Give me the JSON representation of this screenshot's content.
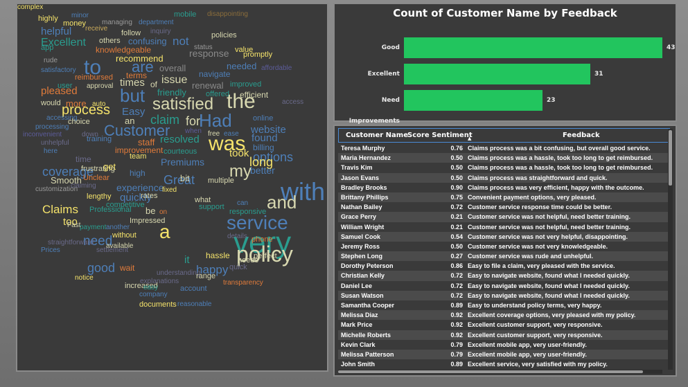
{
  "wordcloud": {
    "words": [
      {
        "text": "highly",
        "color": "#f5e36b",
        "size": 11
      },
      {
        "text": "minor",
        "color": "#4e7fb8",
        "size": 10
      },
      {
        "text": "mobile",
        "color": "#2a9d8f",
        "size": 11
      },
      {
        "text": "disappointing",
        "color": "#8a6d3b",
        "size": 10
      },
      {
        "text": "money",
        "color": "#f5e36b",
        "size": 11
      },
      {
        "text": "managing",
        "color": "#9a9a9a",
        "size": 10
      },
      {
        "text": "department",
        "color": "#4e7fb8",
        "size": 10
      },
      {
        "text": "helpful",
        "color": "#4e7fb8",
        "size": 15
      },
      {
        "text": "receive",
        "color": "#c9a95a",
        "size": 10
      },
      {
        "text": "follow",
        "color": "#d8d8b0",
        "size": 11
      },
      {
        "text": "inquiry",
        "color": "#6a6a8a",
        "size": 10
      },
      {
        "text": "policies",
        "color": "#d8d8b0",
        "size": 11
      },
      {
        "text": "Excellent",
        "color": "#2a9d8f",
        "size": 16
      },
      {
        "text": "others",
        "color": "#d8d8b0",
        "size": 11
      },
      {
        "text": "confusing",
        "color": "#4e7fb8",
        "size": 13
      },
      {
        "text": "not",
        "color": "#4e7fb8",
        "size": 17
      },
      {
        "text": "status",
        "color": "#9a9a9a",
        "size": 10
      },
      {
        "text": "value",
        "color": "#f5e36b",
        "size": 11
      },
      {
        "text": "app",
        "color": "#2a9d8f",
        "size": 11
      },
      {
        "text": "knowledgeable",
        "color": "#e07b3a",
        "size": 12
      },
      {
        "text": "response",
        "color": "#8a8a8a",
        "size": 14
      },
      {
        "text": "promptly",
        "color": "#f5e36b",
        "size": 11
      },
      {
        "text": "rude",
        "color": "#9a9a9a",
        "size": 10
      },
      {
        "text": "recommend",
        "color": "#f5e36b",
        "size": 13
      },
      {
        "text": "to",
        "color": "#4e7fb8",
        "size": 30
      },
      {
        "text": "are",
        "color": "#4e7fb8",
        "size": 22
      },
      {
        "text": "overall",
        "color": "#8a8a8a",
        "size": 13
      },
      {
        "text": "needed",
        "color": "#4e7fb8",
        "size": 13
      },
      {
        "text": "affordable",
        "color": "#5c5c9a",
        "size": 10
      },
      {
        "text": "satisfactory",
        "color": "#4e7fb8",
        "size": 10
      },
      {
        "text": "terms",
        "color": "#e07b3a",
        "size": 12
      },
      {
        "text": "navigate",
        "color": "#4e7fb8",
        "size": 12
      },
      {
        "text": "reimbursed",
        "color": "#e07b3a",
        "size": 11
      },
      {
        "text": "times",
        "color": "#d8d8b0",
        "size": 15
      },
      {
        "text": "of",
        "color": "#d8d8b0",
        "size": 12
      },
      {
        "text": "issue",
        "color": "#d8d8b0",
        "size": 16
      },
      {
        "text": "renewal",
        "color": "#8a8a8a",
        "size": 13
      },
      {
        "text": "improved",
        "color": "#2a9d8f",
        "size": 11
      },
      {
        "text": "approval",
        "color": "#d8d8b0",
        "size": 10
      },
      {
        "text": "user",
        "color": "#2a9d8f",
        "size": 11
      },
      {
        "text": "pleased",
        "color": "#e07b3a",
        "size": 15
      },
      {
        "text": "but",
        "color": "#4e7fb8",
        "size": 26
      },
      {
        "text": "friendly",
        "color": "#2a9d8f",
        "size": 13
      },
      {
        "text": "efficient",
        "color": "#d8d8b0",
        "size": 12
      },
      {
        "text": "offered",
        "color": "#2a9d8f",
        "size": 11
      },
      {
        "text": "access",
        "color": "#6a6a8a",
        "size": 10
      },
      {
        "text": "would",
        "color": "#d8d8b0",
        "size": 11
      },
      {
        "text": "more",
        "color": "#e07b3a",
        "size": 13
      },
      {
        "text": "auto",
        "color": "#f5e36b",
        "size": 10
      },
      {
        "text": "satisfied",
        "color": "#d8d8b0",
        "size": 24
      },
      {
        "text": "the",
        "color": "#d8d8b0",
        "size": 30
      },
      {
        "text": "process",
        "color": "#f5e36b",
        "size": 20
      },
      {
        "text": "Easy",
        "color": "#4e7fb8",
        "size": 15
      },
      {
        "text": "accessing",
        "color": "#4e7fb8",
        "size": 10
      },
      {
        "text": "choice",
        "color": "#d8d8b0",
        "size": 11
      },
      {
        "text": "an",
        "color": "#d8d8b0",
        "size": 13
      },
      {
        "text": "claim",
        "color": "#2a9d8f",
        "size": 18
      },
      {
        "text": "for",
        "color": "#d8d8b0",
        "size": 18
      },
      {
        "text": "Had",
        "color": "#4e7fb8",
        "size": 26
      },
      {
        "text": "online",
        "color": "#4e7fb8",
        "size": 11
      },
      {
        "text": "processing",
        "color": "#4e7fb8",
        "size": 10
      },
      {
        "text": "Customer",
        "color": "#4e7fb8",
        "size": 22
      },
      {
        "text": "when",
        "color": "#5c5c9a",
        "size": 10
      },
      {
        "text": "free",
        "color": "#d8d8b0",
        "size": 10
      },
      {
        "text": "ease",
        "color": "#4e7fb8",
        "size": 10
      },
      {
        "text": "website",
        "color": "#4e7fb8",
        "size": 15
      },
      {
        "text": "inconvenient",
        "color": "#5c5c9a",
        "size": 10
      },
      {
        "text": "down",
        "color": "#6a6a8a",
        "size": 10
      },
      {
        "text": "unhelpful",
        "color": "#6a6a8a",
        "size": 10
      },
      {
        "text": "training",
        "color": "#4e7fb8",
        "size": 11
      },
      {
        "text": "staff",
        "color": "#e07b3a",
        "size": 13
      },
      {
        "text": "resolved",
        "color": "#2a9d8f",
        "size": 15
      },
      {
        "text": "was",
        "color": "#f5e36b",
        "size": 30
      },
      {
        "text": "found",
        "color": "#4e7fb8",
        "size": 15
      },
      {
        "text": "here",
        "color": "#4e7fb8",
        "size": 10
      },
      {
        "text": "improvement",
        "color": "#e07b3a",
        "size": 12
      },
      {
        "text": "billing",
        "color": "#4e7fb8",
        "size": 12
      },
      {
        "text": "courteous",
        "color": "#2a9d8f",
        "size": 11
      },
      {
        "text": "options",
        "color": "#4e7fb8",
        "size": 18
      },
      {
        "text": "team",
        "color": "#f5e36b",
        "size": 11
      },
      {
        "text": "took",
        "color": "#f5e36b",
        "size": 15
      },
      {
        "text": "long",
        "color": "#f5e36b",
        "size": 18
      },
      {
        "text": "time",
        "color": "#6a6a8a",
        "size": 12
      },
      {
        "text": "Premiums",
        "color": "#4e7fb8",
        "size": 14
      },
      {
        "text": "coverage",
        "color": "#4e7fb8",
        "size": 18
      },
      {
        "text": "frustrating",
        "color": "#d8d8b0",
        "size": 11
      },
      {
        "text": "get",
        "color": "#f5e36b",
        "size": 13
      },
      {
        "text": "my",
        "color": "#d8d8b0",
        "size": 24
      },
      {
        "text": "better",
        "color": "#4e7fb8",
        "size": 14
      },
      {
        "text": "high",
        "color": "#4e7fb8",
        "size": 12
      },
      {
        "text": "Great",
        "color": "#4e7fb8",
        "size": 18
      },
      {
        "text": "bit",
        "color": "#d8d8b0",
        "size": 13
      },
      {
        "text": "Smooth",
        "color": "#d8d8b0",
        "size": 13
      },
      {
        "text": "Unclear",
        "color": "#e07b3a",
        "size": 11
      },
      {
        "text": "multiple",
        "color": "#d8d8b0",
        "size": 11
      },
      {
        "text": "with",
        "color": "#4e7fb8",
        "size": 36
      },
      {
        "text": "customization",
        "color": "#9a9a9a",
        "size": 10
      },
      {
        "text": "claiming",
        "color": "#6a6a8a",
        "size": 10
      },
      {
        "text": "experience",
        "color": "#4e7fb8",
        "size": 14
      },
      {
        "text": "quickly",
        "color": "#4e7fb8",
        "size": 15
      },
      {
        "text": "rates",
        "color": "#d8d8b0",
        "size": 11
      },
      {
        "text": "fixed",
        "color": "#f5e36b",
        "size": 10
      },
      {
        "text": "and",
        "color": "#d8d8b0",
        "size": 26
      },
      {
        "text": "lengthy",
        "color": "#f5e36b",
        "size": 11
      },
      {
        "text": "what",
        "color": "#d8d8b0",
        "size": 11
      },
      {
        "text": "can",
        "color": "#4e7fb8",
        "size": 10
      },
      {
        "text": "competitive",
        "color": "#2a9d8f",
        "size": 11
      },
      {
        "text": "Claims",
        "color": "#f5e36b",
        "size": 17
      },
      {
        "text": "Professional",
        "color": "#2a9d8f",
        "size": 11
      },
      {
        "text": "be",
        "color": "#d8d8b0",
        "size": 13
      },
      {
        "text": "support",
        "color": "#2a9d8f",
        "size": 11
      },
      {
        "text": "responsive",
        "color": "#2a9d8f",
        "size": 11
      },
      {
        "text": "on",
        "color": "#e07b3a",
        "size": 10
      },
      {
        "text": "service",
        "color": "#4e7fb8",
        "size": 28
      },
      {
        "text": "Impressed",
        "color": "#d8d8b0",
        "size": 11
      },
      {
        "text": "too",
        "color": "#f5e36b",
        "size": 15
      },
      {
        "text": "payment",
        "color": "#2a9d8f",
        "size": 10
      },
      {
        "text": "another",
        "color": "#4e7fb8",
        "size": 10
      },
      {
        "text": "Fast",
        "color": "#d8d8b0",
        "size": 10
      },
      {
        "text": "a",
        "color": "#f5e36b",
        "size": 28
      },
      {
        "text": "very",
        "color": "#2a9d8f",
        "size": 44
      },
      {
        "text": "without",
        "color": "#f5e36b",
        "size": 11
      },
      {
        "text": "need",
        "color": "#4e7fb8",
        "size": 19
      },
      {
        "text": "details",
        "color": "#6a6a8a",
        "size": 10
      },
      {
        "text": "phone",
        "color": "#e07b3a",
        "size": 11
      },
      {
        "text": "straightforward",
        "color": "#6a6a8a",
        "size": 10
      },
      {
        "text": "available",
        "color": "#d8d8b0",
        "size": 10
      },
      {
        "text": "policy",
        "color": "#d8d8b0",
        "size": 32
      },
      {
        "text": "Prices",
        "color": "#4e7fb8",
        "size": 10
      },
      {
        "text": "settlement",
        "color": "#6a6a8a",
        "size": 10
      },
      {
        "text": "it",
        "color": "#2a9d8f",
        "size": 15
      },
      {
        "text": "hassle",
        "color": "#f5e36b",
        "size": 12
      },
      {
        "text": "needs",
        "color": "#d8d8b0",
        "size": 11
      },
      {
        "text": "perfect",
        "color": "#d8d8b0",
        "size": 11
      },
      {
        "text": "good",
        "color": "#4e7fb8",
        "size": 18
      },
      {
        "text": "wait",
        "color": "#e07b3a",
        "size": 12
      },
      {
        "text": "happy",
        "color": "#4e7fb8",
        "size": 17
      },
      {
        "text": "quick",
        "color": "#6a6a8a",
        "size": 11
      },
      {
        "text": "notice",
        "color": "#f5e36b",
        "size": 10
      },
      {
        "text": "understanding",
        "color": "#6a6a8a",
        "size": 10
      },
      {
        "text": "range",
        "color": "#d8d8b0",
        "size": 11
      },
      {
        "text": "explanations",
        "color": "#6a6a8a",
        "size": 10
      },
      {
        "text": "transparency",
        "color": "#e07b3a",
        "size": 10
      },
      {
        "text": "increased",
        "color": "#d8d8b0",
        "size": 11
      },
      {
        "text": "easy",
        "color": "#2a9d8f",
        "size": 10
      },
      {
        "text": "account",
        "color": "#4e7fb8",
        "size": 11
      },
      {
        "text": "company",
        "color": "#4e7fb8",
        "size": 10
      },
      {
        "text": "documents",
        "color": "#f5e36b",
        "size": 11
      },
      {
        "text": "reasonable",
        "color": "#4e7fb8",
        "size": 10
      },
      {
        "text": "complex",
        "color": "#f5e36b",
        "size": 10
      }
    ]
  },
  "chart": {
    "title": "Count of Customer Name by Feedback",
    "bar_color": "#22c55e"
  },
  "chart_data": {
    "type": "bar",
    "orientation": "horizontal",
    "title": "Count of Customer Name by Feedback",
    "categories": [
      "Good",
      "Excellent",
      "Need Improvements"
    ],
    "values": [
      43,
      31,
      23
    ],
    "xlabel": "",
    "ylabel": "",
    "grid": false,
    "legend": "none"
  },
  "table": {
    "columns": {
      "name": "Customer Name",
      "score": "Score Sentiment",
      "feedback": "Feedback"
    },
    "rows": [
      {
        "name": "Teresa Murphy",
        "score": "0.76",
        "feedback": "Claims process was a bit confusing, but overall good service."
      },
      {
        "name": "Maria Hernandez",
        "score": "0.50",
        "feedback": "Claims process was a hassle, took too long to get reimbursed."
      },
      {
        "name": "Travis Kim",
        "score": "0.50",
        "feedback": "Claims process was a hassle, took too long to get reimbursed."
      },
      {
        "name": "Jason Evans",
        "score": "0.50",
        "feedback": "Claims process was straightforward and quick."
      },
      {
        "name": "Bradley Brooks",
        "score": "0.90",
        "feedback": "Claims process was very efficient, happy with the outcome."
      },
      {
        "name": "Brittany Phillips",
        "score": "0.75",
        "feedback": "Convenient payment options, very pleased."
      },
      {
        "name": "Nathan Bailey",
        "score": "0.72",
        "feedback": "Customer service response time could be better."
      },
      {
        "name": "Grace Perry",
        "score": "0.21",
        "feedback": "Customer service was not helpful, need better training."
      },
      {
        "name": "William Wright",
        "score": "0.21",
        "feedback": "Customer service was not helpful, need better training."
      },
      {
        "name": "Samuel Cook",
        "score": "0.54",
        "feedback": "Customer service was not very helpful, disappointing."
      },
      {
        "name": "Jeremy Ross",
        "score": "0.50",
        "feedback": "Customer service was not very knowledgeable."
      },
      {
        "name": "Stephen Long",
        "score": "0.27",
        "feedback": "Customer service was rude and unhelpful."
      },
      {
        "name": "Dorothy Peterson",
        "score": "0.86",
        "feedback": "Easy to file a claim, very pleased with the service."
      },
      {
        "name": "Christian Kelly",
        "score": "0.72",
        "feedback": "Easy to navigate website, found what I needed quickly."
      },
      {
        "name": "Daniel Lee",
        "score": "0.72",
        "feedback": "Easy to navigate website, found what I needed quickly."
      },
      {
        "name": "Susan Watson",
        "score": "0.72",
        "feedback": "Easy to navigate website, found what I needed quickly."
      },
      {
        "name": "Samantha Cooper",
        "score": "0.89",
        "feedback": "Easy to understand policy terms, very happy."
      },
      {
        "name": "Melissa Diaz",
        "score": "0.92",
        "feedback": "Excellent coverage options, very pleased with my policy."
      },
      {
        "name": "Mark Price",
        "score": "0.92",
        "feedback": "Excellent customer support, very responsive."
      },
      {
        "name": "Michelle Roberts",
        "score": "0.92",
        "feedback": "Excellent customer support, very responsive."
      },
      {
        "name": "Kevin Clark",
        "score": "0.79",
        "feedback": "Excellent mobile app, very user-friendly."
      },
      {
        "name": "Melissa Patterson",
        "score": "0.79",
        "feedback": "Excellent mobile app, very user-friendly."
      },
      {
        "name": "John Smith",
        "score": "0.89",
        "feedback": "Excellent service, very satisfied with my policy."
      }
    ]
  }
}
